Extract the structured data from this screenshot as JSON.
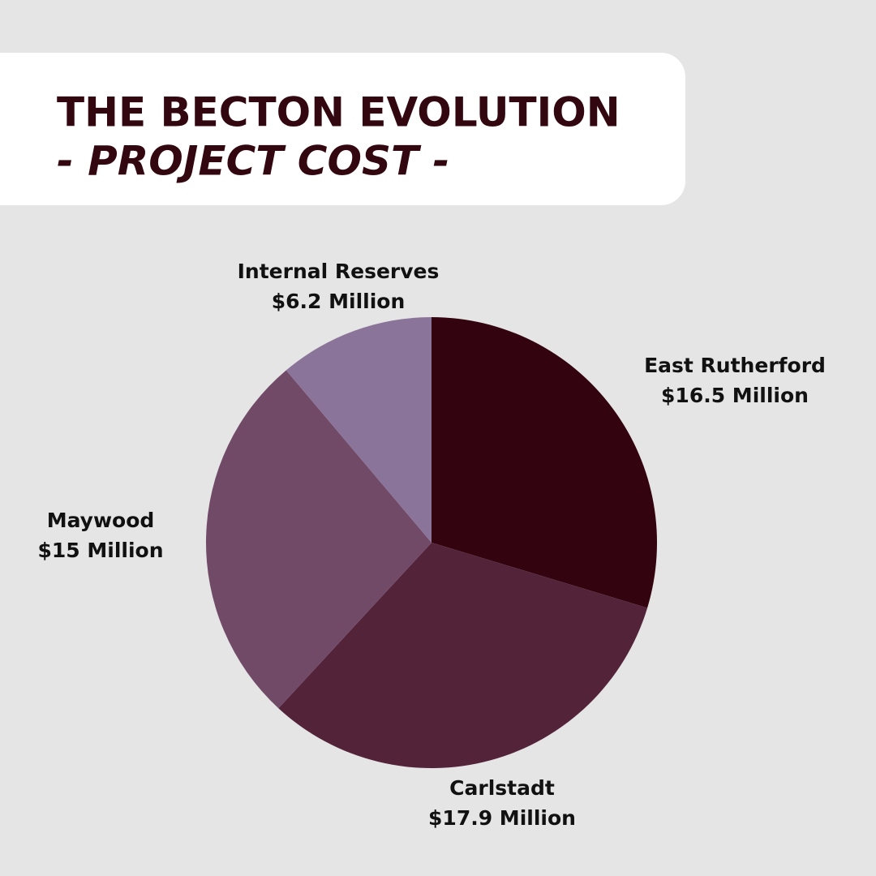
{
  "chart_data": {
    "type": "pie",
    "title": "THE BECTON EVOLUTION",
    "subtitle": "- PROJECT COST -",
    "categories": [
      "East Rutherford",
      "Carlstadt",
      "Maywood",
      "Internal Reserves"
    ],
    "values": [
      16.5,
      17.9,
      15,
      6.2
    ],
    "value_labels": [
      "$16.5 Million",
      "$17.9 Million",
      "$15 Million",
      "$6.2 Million"
    ],
    "colors": [
      "#33040f",
      "#53233a",
      "#714a68",
      "#8b7499"
    ]
  }
}
